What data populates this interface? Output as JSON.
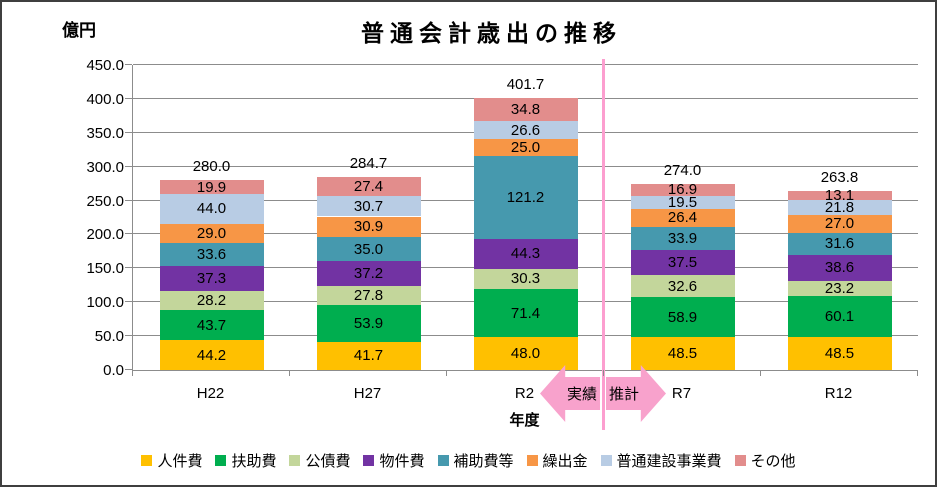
{
  "header": {
    "title": "普通会計歳出の推移",
    "y_unit_label": "億円"
  },
  "chart_data": {
    "type": "bar",
    "stacked": true,
    "title": "普通会計歳出の推移",
    "xlabel": "年度",
    "ylabel": "億円",
    "ylim": [
      0,
      450
    ],
    "ytick_step": 50,
    "grid": true,
    "legend_position": "bottom",
    "categories": [
      "H22",
      "H27",
      "R2",
      "R7",
      "R12"
    ],
    "series": [
      {
        "name": "人件費",
        "color": "#FFC000",
        "values": [
          44.2,
          41.7,
          48.0,
          48.5,
          48.5
        ]
      },
      {
        "name": "扶助費",
        "color": "#00AE4F",
        "values": [
          43.7,
          53.9,
          71.4,
          58.9,
          60.1
        ]
      },
      {
        "name": "公債費",
        "color": "#C3D69B",
        "values": [
          28.2,
          27.8,
          30.3,
          32.6,
          23.2
        ]
      },
      {
        "name": "物件費",
        "color": "#7233A3",
        "values": [
          37.3,
          37.2,
          44.3,
          37.5,
          38.6
        ]
      },
      {
        "name": "補助費等",
        "color": "#4699AE",
        "values": [
          33.6,
          35.0,
          121.2,
          33.9,
          31.6
        ]
      },
      {
        "name": "繰出金",
        "color": "#F79646",
        "values": [
          29.0,
          30.9,
          25.0,
          26.4,
          27.0
        ]
      },
      {
        "name": "普通建設事業費",
        "color": "#B8CCE4",
        "values": [
          44.0,
          30.7,
          26.6,
          19.5,
          21.8
        ]
      },
      {
        "name": "その他",
        "color": "#E28D8C",
        "values": [
          19.9,
          27.4,
          34.8,
          16.9,
          13.1
        ]
      }
    ],
    "totals": [
      "280.0",
      "284.7",
      "401.7",
      "274.0",
      "263.8"
    ]
  },
  "annotations": {
    "divider_after_category": "R2",
    "divider_color": "#FC9ECF",
    "arrow_color": "#F8A2CC",
    "left_arrow_label": "実績",
    "right_arrow_label": "推計"
  }
}
